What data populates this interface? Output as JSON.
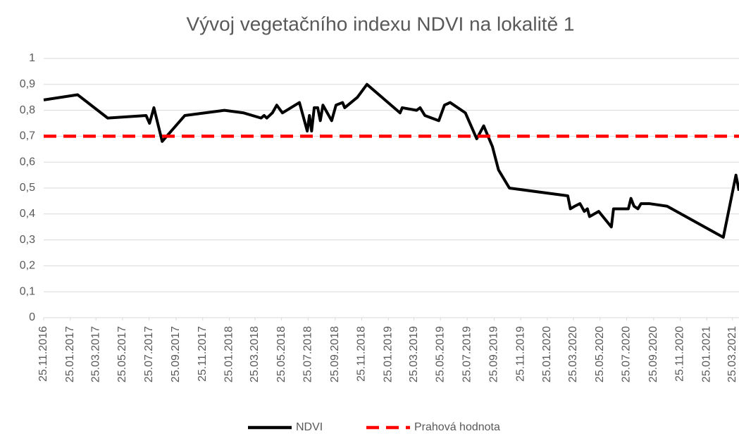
{
  "chart_data": {
    "type": "line",
    "title": "Vývoj vegetačního indexu NDVI na lokalitě 1",
    "xlim": [
      "2016-11-25",
      "2021-04-09"
    ],
    "xticks": [
      {
        "value": "2016-11-25",
        "label": "25.11.2016"
      },
      {
        "value": "2017-01-25",
        "label": "25.01.2017"
      },
      {
        "value": "2017-03-25",
        "label": "25.03.2017"
      },
      {
        "value": "2017-05-25",
        "label": "25.05.2017"
      },
      {
        "value": "2017-07-25",
        "label": "25.07.2017"
      },
      {
        "value": "2017-09-25",
        "label": "25.09.2017"
      },
      {
        "value": "2017-11-25",
        "label": "25.11.2017"
      },
      {
        "value": "2018-01-25",
        "label": "25.01.2018"
      },
      {
        "value": "2018-03-25",
        "label": "25.03.2018"
      },
      {
        "value": "2018-05-25",
        "label": "25.05.2018"
      },
      {
        "value": "2018-07-25",
        "label": "25.07.2018"
      },
      {
        "value": "2018-09-25",
        "label": "25.09.2018"
      },
      {
        "value": "2018-11-25",
        "label": "25.11.2018"
      },
      {
        "value": "2019-01-25",
        "label": "25.01.2019"
      },
      {
        "value": "2019-03-25",
        "label": "25.03.2019"
      },
      {
        "value": "2019-05-25",
        "label": "25.05.2019"
      },
      {
        "value": "2019-07-25",
        "label": "25.07.2019"
      },
      {
        "value": "2019-09-25",
        "label": "25.09.2019"
      },
      {
        "value": "2019-11-25",
        "label": "25.11.2019"
      },
      {
        "value": "2020-01-25",
        "label": "25.01.2020"
      },
      {
        "value": "2020-03-25",
        "label": "25.03.2020"
      },
      {
        "value": "2020-05-25",
        "label": "25.05.2020"
      },
      {
        "value": "2020-07-25",
        "label": "25.07.2020"
      },
      {
        "value": "2020-09-25",
        "label": "25.09.2020"
      },
      {
        "value": "2020-11-25",
        "label": "25.11.2020"
      },
      {
        "value": "2021-01-25",
        "label": "25.01.2021"
      },
      {
        "value": "2021-03-25",
        "label": "25.03.2021"
      }
    ],
    "ylim": [
      0,
      1
    ],
    "yticks": [
      0,
      {
        "value": 0.1,
        "label": "0,1"
      },
      {
        "value": 0.2,
        "label": "0,2"
      },
      {
        "value": 0.3,
        "label": "0,3"
      },
      {
        "value": 0.4,
        "label": "0,4"
      },
      {
        "value": 0.5,
        "label": "0,5"
      },
      {
        "value": 0.6,
        "label": "0,6"
      },
      {
        "value": 0.7,
        "label": "0,7"
      },
      {
        "value": 0.8,
        "label": "0,8"
      },
      {
        "value": 0.9,
        "label": "0,9"
      },
      1
    ],
    "grid": true,
    "legend": "bottom",
    "series": [
      {
        "name": "NDVI",
        "color": "#000000",
        "dash": false,
        "x": [
          "2016-11-25",
          "2017-02-11",
          "2017-04-21",
          "2017-07-18",
          "2017-07-26",
          "2017-08-05",
          "2017-08-24",
          "2017-10-15",
          "2018-01-14",
          "2018-02-27",
          "2018-04-08",
          "2018-04-15",
          "2018-04-21",
          "2018-05-04",
          "2018-05-14",
          "2018-05-27",
          "2018-07-05",
          "2018-07-23",
          "2018-07-28",
          "2018-08-02",
          "2018-08-08",
          "2018-08-16",
          "2018-08-22",
          "2018-08-28",
          "2018-09-17",
          "2018-09-27",
          "2018-10-12",
          "2018-10-17",
          "2018-11-15",
          "2018-12-07",
          "2019-02-21",
          "2019-02-26",
          "2019-03-31",
          "2019-04-08",
          "2019-04-19",
          "2019-05-21",
          "2019-06-03",
          "2019-06-16",
          "2019-07-21",
          "2019-08-16",
          "2019-09-01",
          "2019-09-21",
          "2019-10-05",
          "2019-10-30",
          "2020-03-12",
          "2020-03-18",
          "2020-03-28",
          "2020-04-09",
          "2020-04-19",
          "2020-04-26",
          "2020-05-01",
          "2020-05-22",
          "2020-06-20",
          "2020-06-25",
          "2020-07-29",
          "2020-08-04",
          "2020-08-11",
          "2020-08-20",
          "2020-08-27",
          "2020-09-15",
          "2020-10-26",
          "2021-03-04",
          "2021-04-02",
          "2021-04-09"
        ],
        "values": [
          0.84,
          0.86,
          0.77,
          0.78,
          0.75,
          0.81,
          0.68,
          0.78,
          0.8,
          0.79,
          0.77,
          0.78,
          0.77,
          0.79,
          0.82,
          0.79,
          0.83,
          0.72,
          0.78,
          0.72,
          0.81,
          0.81,
          0.76,
          0.82,
          0.76,
          0.82,
          0.83,
          0.81,
          0.85,
          0.9,
          0.79,
          0.81,
          0.8,
          0.81,
          0.78,
          0.76,
          0.82,
          0.83,
          0.79,
          0.69,
          0.74,
          0.66,
          0.57,
          0.5,
          0.47,
          0.42,
          0.43,
          0.44,
          0.41,
          0.42,
          0.39,
          0.41,
          0.35,
          0.42,
          0.42,
          0.46,
          0.43,
          0.42,
          0.44,
          0.44,
          0.43,
          0.31,
          0.55,
          0.49
        ]
      },
      {
        "name": "Prahová hodnota",
        "color": "#ff0000",
        "dash": true,
        "x": [
          "2016-11-25",
          "2021-04-09"
        ],
        "values": [
          0.7,
          0.7
        ]
      }
    ]
  }
}
